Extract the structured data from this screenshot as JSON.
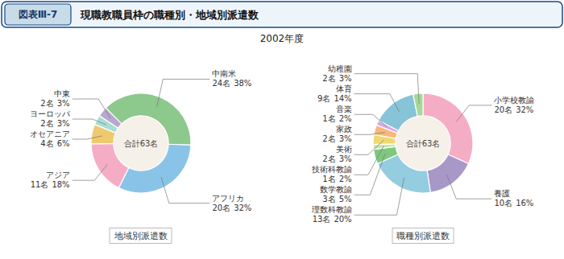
{
  "title": "現職教職員枠の職種別・地域別派遣数",
  "subtitle": "2002年度",
  "annotations": [
    "図表Ⅲ-7"
  ],
  "chart_data": [
    {
      "type": "pie",
      "title": "地域別派遣数",
      "annotations": [
        "合計63名"
      ],
      "categories": [
        "中南米",
        "アフリカ",
        "アジア",
        "オセアニア",
        "ヨーロッパ",
        "中東"
      ],
      "values": [
        24,
        20,
        11,
        4,
        2,
        2
      ],
      "value_labels": [
        "24名",
        "20名",
        "11名",
        "4名",
        "2名",
        "2名"
      ],
      "percents": [
        38,
        32,
        18,
        6,
        3,
        3
      ],
      "percent_labels": [
        "38%",
        "32%",
        "18%",
        "6%",
        "3%",
        "3%"
      ],
      "colors": [
        "#8dc88d",
        "#89c4e8",
        "#f5adc6",
        "#f0c96e",
        "#a8ddd4",
        "#b8a8d0"
      ]
    },
    {
      "type": "pie",
      "title": "職種別派遣数",
      "annotations": [
        "合計63名"
      ],
      "categories": [
        "小学校教諭",
        "養護",
        "理数科教諭",
        "数学教諭",
        "技術科教諭",
        "美術",
        "家政",
        "音楽",
        "体育",
        "幼稚園"
      ],
      "values": [
        20,
        10,
        13,
        3,
        1,
        2,
        2,
        1,
        9,
        2
      ],
      "value_labels": [
        "20名",
        "10名",
        "13名",
        "3名",
        "1名",
        "2名",
        "2名",
        "1名",
        "9名",
        "2名"
      ],
      "percents": [
        32,
        16,
        20,
        5,
        2,
        3,
        3,
        2,
        14,
        3
      ],
      "percent_labels": [
        "32%",
        "16%",
        "20%",
        "5%",
        "2%",
        "3%",
        "3%",
        "2%",
        "14%",
        "3%"
      ],
      "colors": [
        "#f5adc6",
        "#a898c8",
        "#94cce0",
        "#7ec87e",
        "#c8e8a0",
        "#f0d870",
        "#f8b87a",
        "#d8a8e8",
        "#88c4d8",
        "#a8d898"
      ]
    }
  ]
}
